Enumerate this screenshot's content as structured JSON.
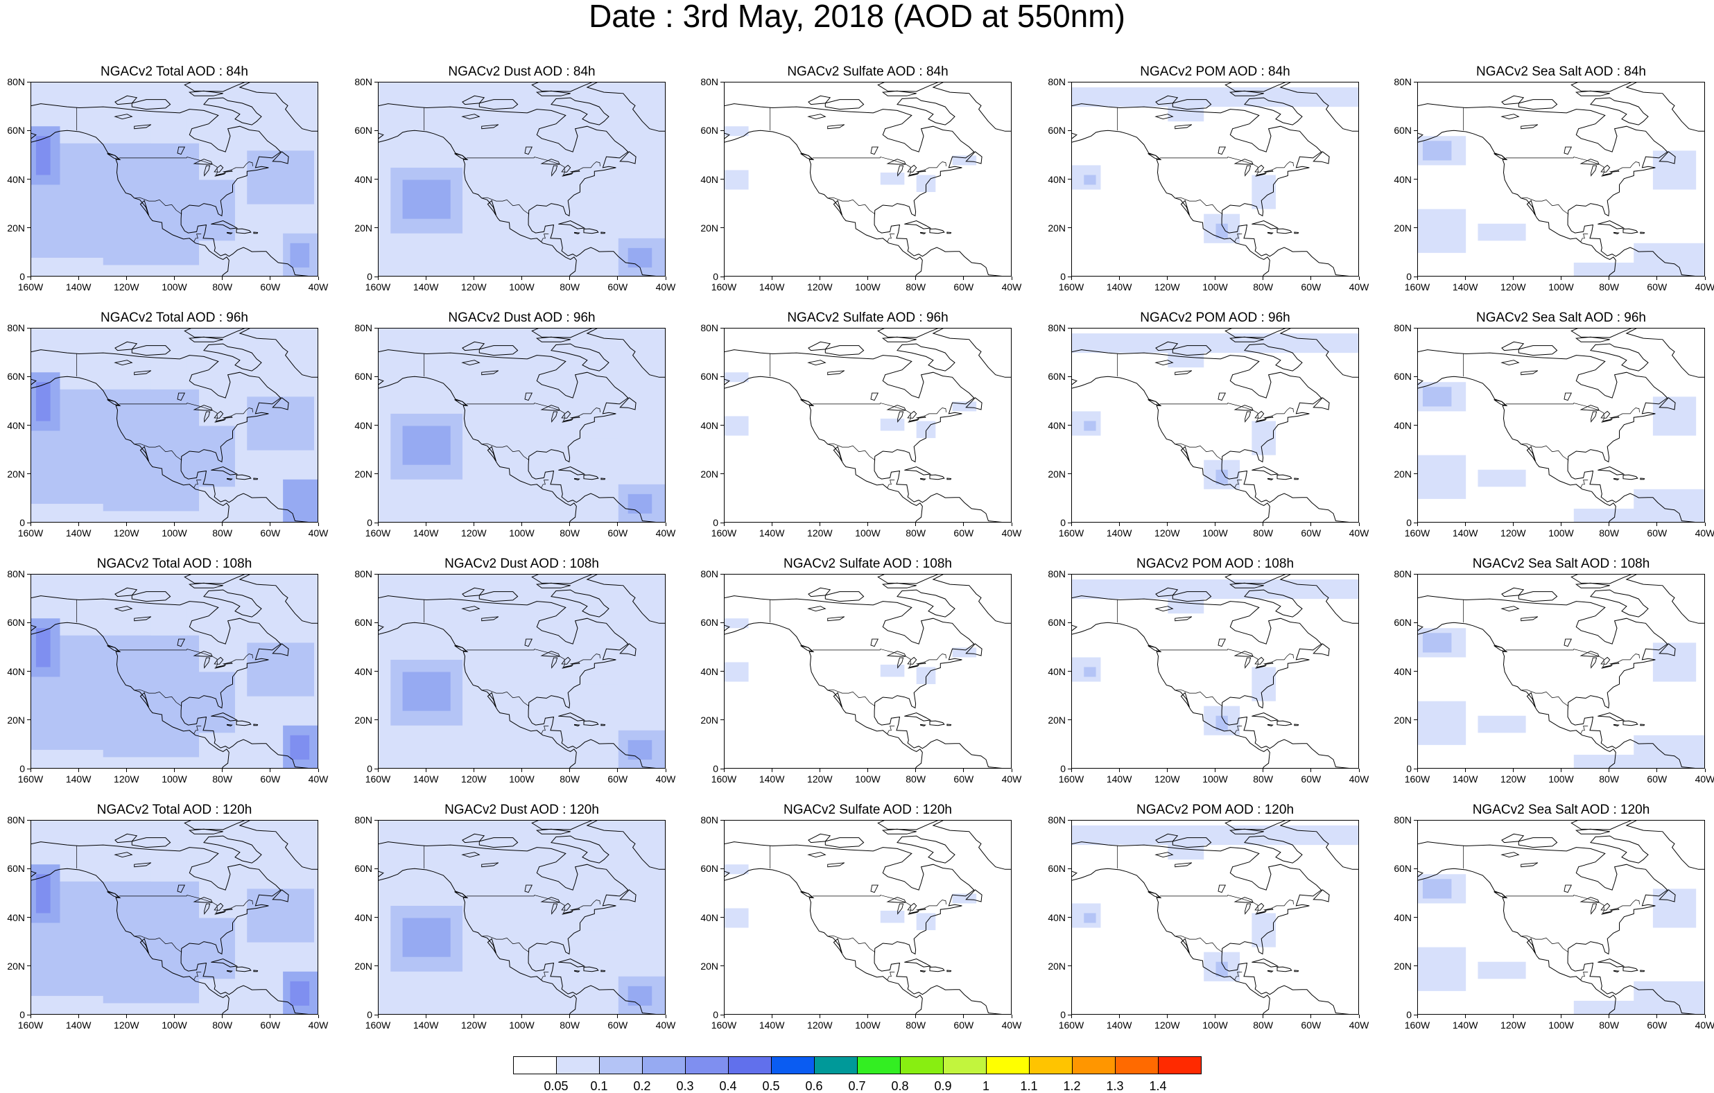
{
  "title": "Date : 3rd May, 2018 (AOD at 550nm)",
  "rows": [
    {
      "hour": "84h",
      "panels": [
        {
          "name": "total",
          "title": "NGACv2 Total AOD : 84h"
        },
        {
          "name": "dust",
          "title": "NGACv2 Dust AOD : 84h"
        },
        {
          "name": "sulfate",
          "title": "NGACv2 Sulfate AOD : 84h"
        },
        {
          "name": "pom",
          "title": "NGACv2 POM AOD : 84h"
        },
        {
          "name": "seasalt",
          "title": "NGACv2 Sea Salt AOD : 84h"
        }
      ]
    },
    {
      "hour": "96h",
      "panels": [
        {
          "name": "total",
          "title": "NGACv2 Total AOD : 96h"
        },
        {
          "name": "dust",
          "title": "NGACv2 Dust AOD : 96h"
        },
        {
          "name": "sulfate",
          "title": "NGACv2 Sulfate AOD : 96h"
        },
        {
          "name": "pom",
          "title": "NGACv2 POM AOD : 96h"
        },
        {
          "name": "seasalt",
          "title": "NGACv2 Sea Salt AOD : 96h"
        }
      ]
    },
    {
      "hour": "108h",
      "panels": [
        {
          "name": "total",
          "title": "NGACv2 Total AOD : 108h"
        },
        {
          "name": "dust",
          "title": "NGACv2 Dust AOD : 108h"
        },
        {
          "name": "sulfate",
          "title": "NGACv2 Sulfate AOD : 108h"
        },
        {
          "name": "pom",
          "title": "NGACv2 POM AOD : 108h"
        },
        {
          "name": "seasalt",
          "title": "NGACv2 Sea Salt AOD : 108h"
        }
      ]
    },
    {
      "hour": "120h",
      "panels": [
        {
          "name": "total",
          "title": "NGACv2 Total AOD : 120h"
        },
        {
          "name": "dust",
          "title": "NGACv2 Dust AOD : 120h"
        },
        {
          "name": "sulfate",
          "title": "NGACv2 Sulfate AOD : 120h"
        },
        {
          "name": "pom",
          "title": "NGACv2 POM AOD : 120h"
        },
        {
          "name": "seasalt",
          "title": "NGACv2 Sea Salt  AOD : 120h"
        }
      ]
    }
  ],
  "x_ticks": [
    "160W",
    "140W",
    "120W",
    "100W",
    "80W",
    "60W",
    "40W"
  ],
  "y_ticks": [
    "0",
    "20N",
    "40N",
    "60N",
    "80N"
  ],
  "colorbar": {
    "levels": [
      "0.05",
      "0.1",
      "0.2",
      "0.3",
      "0.4",
      "0.5",
      "0.6",
      "0.7",
      "0.8",
      "0.9",
      "1",
      "1.1",
      "1.2",
      "1.3",
      "1.4"
    ],
    "colors": [
      "#ffffff",
      "#d7e0fb",
      "#b4c4f6",
      "#96aaf2",
      "#7f8ff0",
      "#6170ec",
      "#0a5cf2",
      "#009999",
      "#33ee22",
      "#88ee11",
      "#c2f53d",
      "#ffff00",
      "#ffc400",
      "#ff9600",
      "#ff6a00",
      "#ff2a00"
    ]
  },
  "colors": {
    "land_outline": "#000000",
    "aod_light": "#d7e0fb",
    "aod_mid": "#b4c4f6",
    "aod_high": "#96aaf2",
    "aod_max": "#7f8ff0"
  }
}
